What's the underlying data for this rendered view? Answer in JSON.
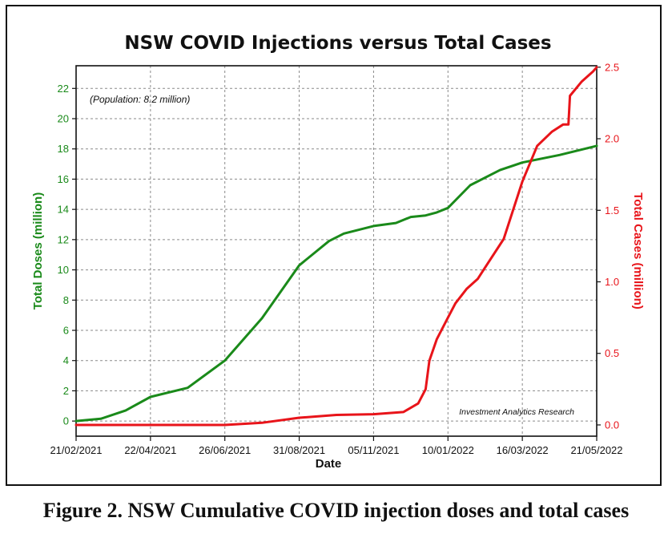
{
  "caption": "Figure 2. NSW Cumulative COVID injection doses and total cases",
  "chart_data": {
    "type": "line",
    "title": "NSW COVID Injections versus Total Cases",
    "xlabel": "Date",
    "ylabel_left": "Total Doses (million)",
    "ylabel_right": "Total Cases (million)",
    "annotation": "(Population: 8.2 million)",
    "credit": "Investment Analytics Research",
    "x_ticks": [
      "21/02/2021",
      "22/04/2021",
      "26/06/2021",
      "31/08/2021",
      "05/11/2021",
      "10/01/2022",
      "16/03/2022",
      "21/05/2022"
    ],
    "ylim_left": [
      -1,
      23.5
    ],
    "ylim_right": [
      -0.0786,
      2.51
    ],
    "y_ticks_left": [
      "0",
      "2",
      "4",
      "6",
      "8",
      "10",
      "12",
      "14",
      "16",
      "18",
      "20",
      "22"
    ],
    "y_ticks_right": [
      "0.0",
      "0.5",
      "1.0",
      "1.5",
      "2.0",
      "2.5"
    ],
    "grid": true,
    "colors": {
      "doses": "#1a8a1a",
      "cases": "#e8141a"
    },
    "series": [
      {
        "name": "Total Doses (million)",
        "axis": "left",
        "x": [
          0,
          0.333,
          0.667,
          1.0,
          1.5,
          2.0,
          2.5,
          3.0,
          3.4,
          3.6,
          4.0,
          4.3,
          4.5,
          4.7,
          4.85,
          5.0,
          5.3,
          5.7,
          6.0,
          6.5,
          7.0
        ],
        "values": [
          0.0,
          0.15,
          0.7,
          1.6,
          2.2,
          4.0,
          6.8,
          10.3,
          11.9,
          12.4,
          12.9,
          13.1,
          13.5,
          13.6,
          13.8,
          14.1,
          15.6,
          16.6,
          17.1,
          17.6,
          18.2
        ]
      },
      {
        "name": "Total Cases (million)",
        "axis": "right",
        "x": [
          0,
          1.5,
          2.0,
          2.5,
          3.0,
          3.5,
          4.0,
          4.4,
          4.6,
          4.7,
          4.75,
          4.85,
          5.0,
          5.1,
          5.25,
          5.4,
          5.5,
          5.75,
          6.0,
          6.2,
          6.4,
          6.55,
          6.62,
          6.64,
          6.8,
          6.95,
          7.0
        ],
        "values": [
          0.0,
          0.0,
          0.0,
          0.015,
          0.05,
          0.07,
          0.075,
          0.09,
          0.15,
          0.25,
          0.45,
          0.6,
          0.75,
          0.85,
          0.95,
          1.02,
          1.1,
          1.3,
          1.7,
          1.95,
          2.05,
          2.1,
          2.1,
          2.3,
          2.4,
          2.47,
          2.5
        ]
      }
    ]
  }
}
